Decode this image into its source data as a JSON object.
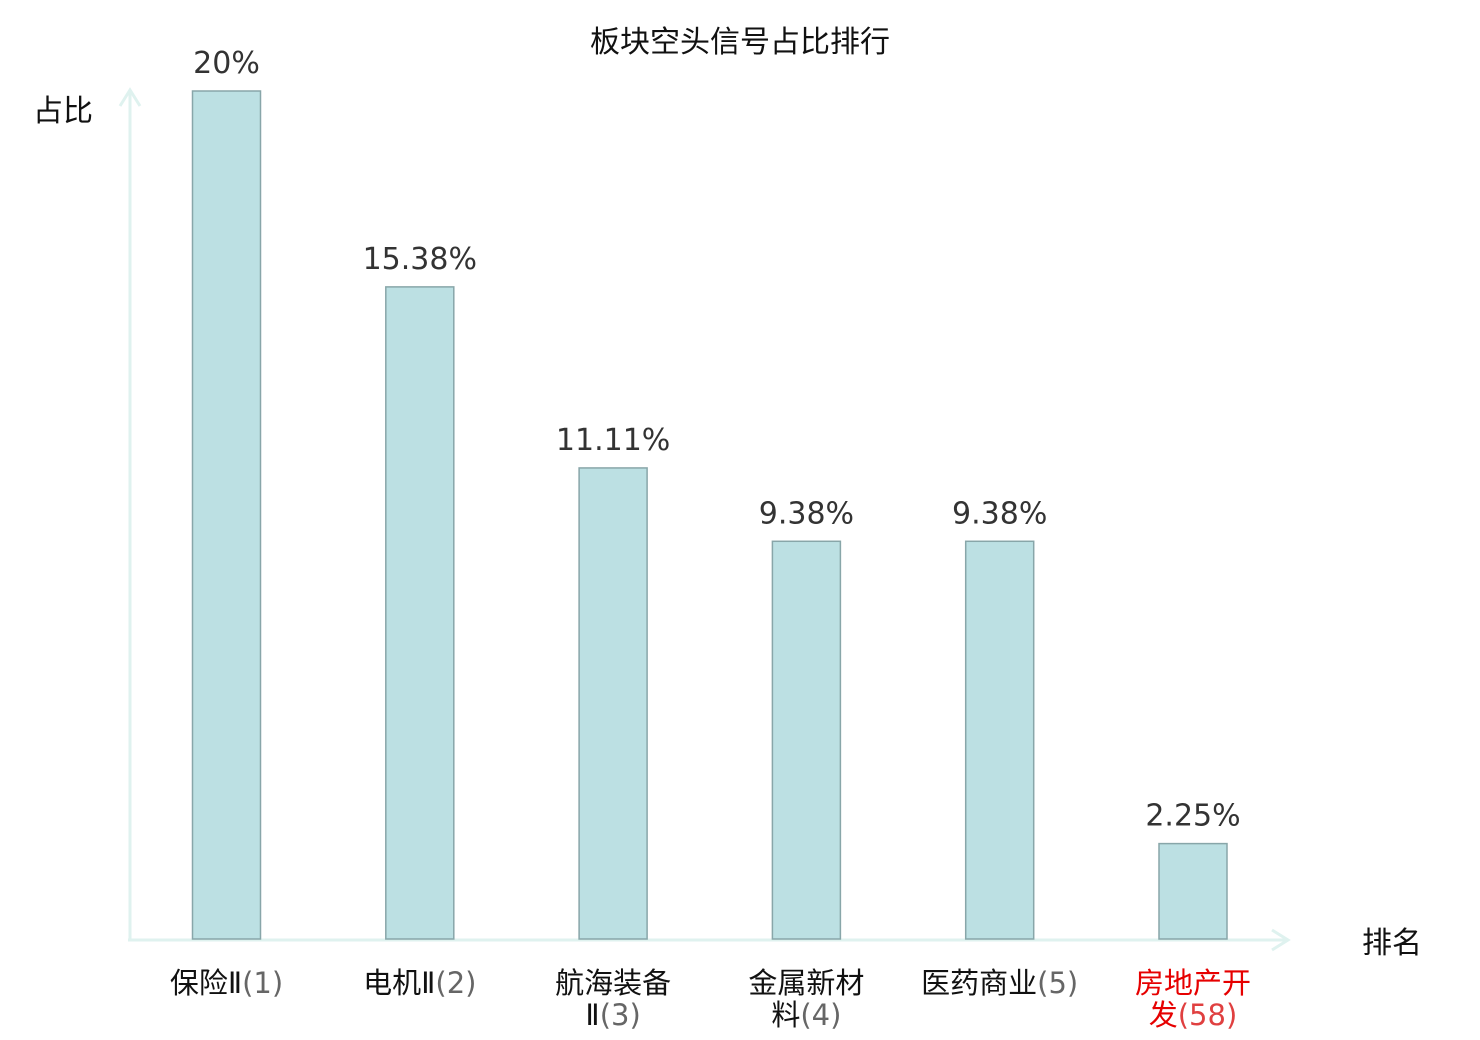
{
  "chart_data": {
    "type": "bar",
    "title": "板块空头信号占比排行",
    "ylabel": "占比",
    "xlabel": "排名",
    "ylim": [
      0,
      20
    ],
    "categories": [
      {
        "name_lines": [
          "保险Ⅱ"
        ],
        "rank": "(1)",
        "highlight": false
      },
      {
        "name_lines": [
          "电机Ⅱ"
        ],
        "rank": "(2)",
        "highlight": false
      },
      {
        "name_lines": [
          "航海装备",
          "Ⅱ"
        ],
        "rank": "(3)",
        "highlight": false
      },
      {
        "name_lines": [
          "金属新材",
          "料"
        ],
        "rank": "(4)",
        "highlight": false
      },
      {
        "name_lines": [
          "医药商业"
        ],
        "rank": "(5)",
        "highlight": false
      },
      {
        "name_lines": [
          "房地产开",
          "发"
        ],
        "rank": "(58)",
        "highlight": true
      }
    ],
    "values": [
      20,
      15.38,
      11.11,
      9.38,
      9.38,
      2.25
    ],
    "value_labels": [
      "20%",
      "15.38%",
      "11.11%",
      "9.38%",
      "9.38%",
      "2.25%"
    ],
    "grid": false,
    "colors": {
      "bar_fill": "#bce0e3",
      "bar_stroke": "#88a6a9",
      "axis": "#dff2ef",
      "highlight_label": "#e60000"
    }
  }
}
